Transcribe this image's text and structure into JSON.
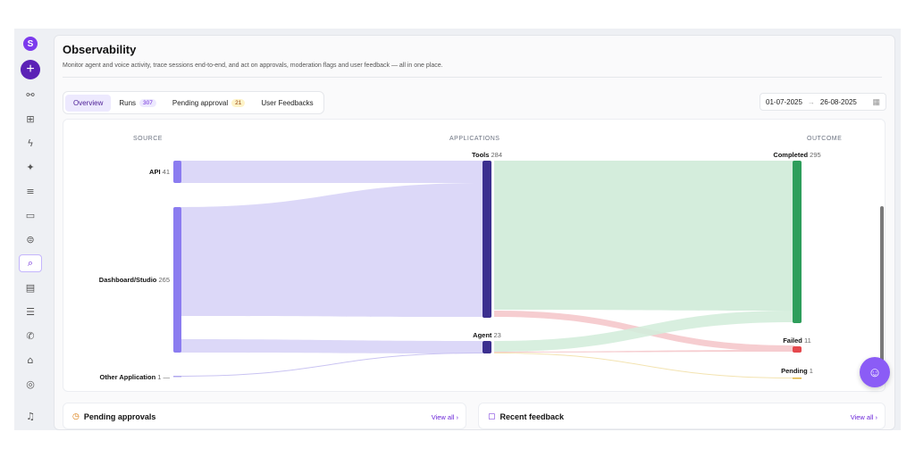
{
  "page": {
    "title": "Observability",
    "subtitle": "Monitor agent and voice activity, trace sessions end-to-end, and act on approvals, moderation flags and user feedback — all in one place."
  },
  "sidebar": {
    "logo": "S",
    "new_button": "+",
    "items": [
      {
        "icon": "graph-icon",
        "glyph": "⚯"
      },
      {
        "icon": "nodes-icon",
        "glyph": "⊞"
      },
      {
        "icon": "lightning-icon",
        "glyph": "ϟ"
      },
      {
        "icon": "runner-icon",
        "glyph": "✦"
      },
      {
        "icon": "database-icon",
        "glyph": "≡"
      },
      {
        "icon": "folder-icon",
        "glyph": "▭"
      },
      {
        "icon": "storage-icon",
        "glyph": "⊜"
      },
      {
        "icon": "observability-icon",
        "glyph": "⌕",
        "active": true
      },
      {
        "icon": "document-icon",
        "glyph": "▤"
      },
      {
        "icon": "list-icon",
        "glyph": "☰"
      },
      {
        "icon": "phone-icon",
        "glyph": "✆"
      },
      {
        "icon": "home-icon",
        "glyph": "⌂"
      },
      {
        "icon": "eye-icon",
        "glyph": "◎"
      },
      {
        "icon": "bell-icon",
        "glyph": "♫"
      }
    ]
  },
  "tabs": [
    {
      "label": "Overview",
      "active": true
    },
    {
      "label": "Runs",
      "badge": "307"
    },
    {
      "label": "Pending approval",
      "badge": "21",
      "badge_style": "warn"
    },
    {
      "label": "User Feedbacks"
    }
  ],
  "date_range": {
    "start": "01-07-2025",
    "arrow": "→",
    "end": "26-08-2025"
  },
  "sankey": {
    "columns": {
      "source": "SOURCE",
      "applications": "APPLICATIONS",
      "outcome": "OUTCOME"
    },
    "nodes": {
      "api": {
        "label": "API",
        "value": "41"
      },
      "dashboard": {
        "label": "Dashboard/Studio",
        "value": "265"
      },
      "other": {
        "label": "Other Application",
        "value": "1"
      },
      "tools": {
        "label": "Tools",
        "value": "284"
      },
      "agent": {
        "label": "Agent",
        "value": "23"
      },
      "completed": {
        "label": "Completed",
        "value": "295"
      },
      "failed": {
        "label": "Failed",
        "value": "11"
      },
      "pending": {
        "label": "Pending",
        "value": "1"
      }
    },
    "links": [
      {
        "source": "API",
        "target": "Tools",
        "value": 41
      },
      {
        "source": "Dashboard/Studio",
        "target": "Tools",
        "value": 243
      },
      {
        "source": "Dashboard/Studio",
        "target": "Agent",
        "value": 22
      },
      {
        "source": "Other Application",
        "target": "Agent",
        "value": 1
      },
      {
        "source": "Tools",
        "target": "Completed",
        "value": 274
      },
      {
        "source": "Tools",
        "target": "Failed",
        "value": 10
      },
      {
        "source": "Agent",
        "target": "Completed",
        "value": 21
      },
      {
        "source": "Agent",
        "target": "Failed",
        "value": 1
      },
      {
        "source": "Agent",
        "target": "Pending",
        "value": 1
      }
    ],
    "colors": {
      "source_node": "#8b7cf0",
      "app_node": "#3b2f8f",
      "completed": "#2e9e5b",
      "failed": "#e5484d",
      "pending": "#e0b43c",
      "link_source": "#dcd8f8",
      "link_completed": "#d4eddc",
      "link_failed": "#f6cdd0"
    }
  },
  "cards": {
    "pending": {
      "title": "Pending approvals",
      "view_all": "View all ›"
    },
    "feedback": {
      "title": "Recent feedback",
      "view_all": "View all ›"
    }
  }
}
